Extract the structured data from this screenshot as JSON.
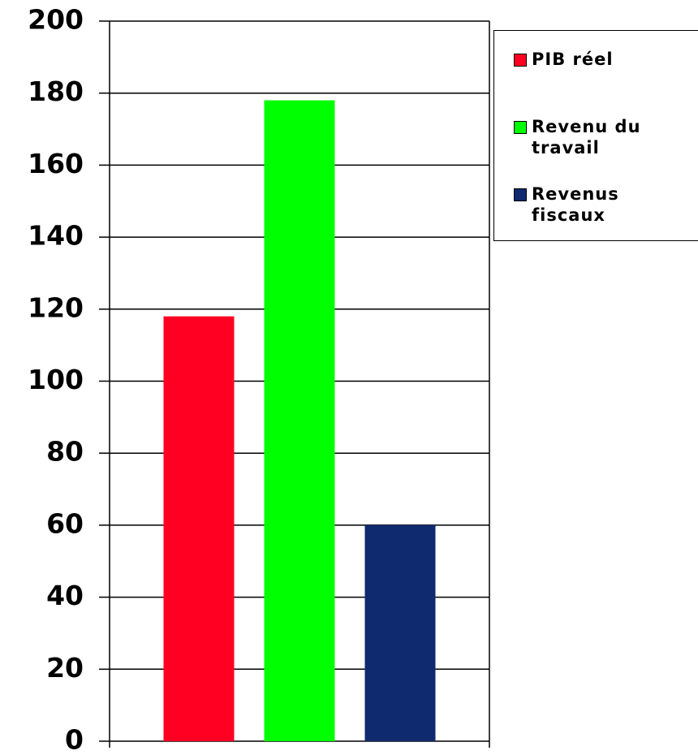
{
  "chart_data": {
    "type": "bar",
    "categories": [
      null
    ],
    "series": [
      {
        "name": "PIB réel",
        "color": "#ff0022",
        "values": [
          118
        ]
      },
      {
        "name": "Revenu du travail",
        "color": "#00ff00",
        "values": [
          178
        ]
      },
      {
        "name": "Revenus fiscaux",
        "color": "#0f2a6e",
        "values": [
          60
        ]
      }
    ],
    "ylim": [
      0,
      200
    ],
    "yticks": [
      0,
      20,
      40,
      60,
      80,
      100,
      120,
      140,
      160,
      180,
      200
    ],
    "grid": true,
    "legend": "right"
  }
}
